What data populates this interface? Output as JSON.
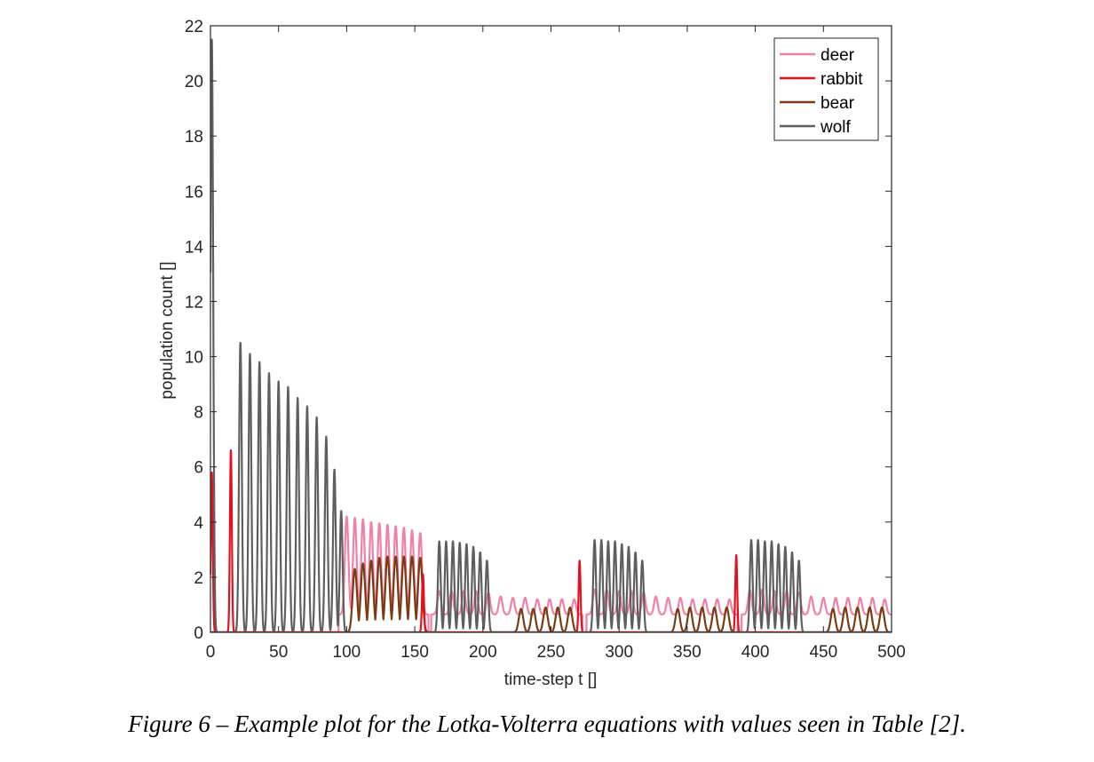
{
  "chart_data": {
    "type": "line",
    "xlabel": "time-step t []",
    "ylabel": "population count []",
    "xlim": [
      0,
      500
    ],
    "ylim": [
      0,
      22
    ],
    "xticks": [
      0,
      50,
      100,
      150,
      200,
      250,
      300,
      350,
      400,
      450,
      500
    ],
    "yticks": [
      0,
      2,
      4,
      6,
      8,
      10,
      12,
      14,
      16,
      18,
      20,
      22
    ],
    "grid": false,
    "legend_position": "top-right",
    "series": [
      {
        "name": "deer",
        "color": "#f27fa6",
        "peaks_x": [
          100,
          106,
          112,
          118,
          124,
          130,
          136,
          142,
          148,
          154,
          168,
          177,
          186,
          195,
          204,
          213,
          222,
          231,
          240,
          249,
          258,
          267,
          282,
          291,
          300,
          309,
          318,
          327,
          336,
          345,
          354,
          363,
          372,
          381,
          396,
          405,
          414,
          423,
          432,
          441,
          450,
          459,
          468,
          477,
          486,
          495
        ],
        "peaks_y": [
          4.2,
          4.15,
          4.1,
          4.0,
          3.95,
          3.9,
          3.85,
          3.8,
          3.7,
          3.6,
          1.5,
          1.5,
          1.5,
          1.5,
          1.45,
          1.3,
          1.25,
          1.25,
          1.2,
          1.2,
          1.2,
          1.2,
          1.55,
          1.55,
          1.5,
          1.5,
          1.45,
          1.3,
          1.25,
          1.25,
          1.2,
          1.2,
          1.2,
          1.2,
          1.55,
          1.55,
          1.5,
          1.5,
          1.45,
          1.3,
          1.25,
          1.25,
          1.25,
          1.25,
          1.25,
          1.2
        ],
        "trough_y": 0.65
      },
      {
        "name": "rabbit",
        "color": "#e3101e",
        "peaks_x": [
          1,
          15,
          156,
          271,
          386
        ],
        "peaks_y": [
          5.8,
          6.6,
          2.1,
          2.6,
          2.8
        ]
      },
      {
        "name": "bear",
        "color": "#7a3c14",
        "peaks_x": [
          106,
          112,
          118,
          124,
          130,
          136,
          142,
          148,
          154,
          228,
          237,
          246,
          255,
          264,
          343,
          352,
          361,
          370,
          379,
          457,
          466,
          475,
          484,
          493
        ],
        "peaks_y": [
          2.3,
          2.5,
          2.6,
          2.7,
          2.75,
          2.75,
          2.75,
          2.75,
          2.7,
          0.85,
          0.85,
          0.9,
          0.9,
          0.9,
          0.85,
          0.9,
          0.9,
          0.9,
          0.9,
          0.85,
          0.9,
          0.9,
          0.9,
          0.9
        ]
      },
      {
        "name": "wolf",
        "color": "#5f5f5f",
        "peaks_x": [
          1,
          22,
          29,
          36,
          43,
          50,
          57,
          64,
          71,
          78,
          85,
          91,
          96,
          168,
          173,
          178,
          183,
          188,
          193,
          198,
          203,
          282,
          287,
          292,
          297,
          302,
          307,
          312,
          317,
          397,
          402,
          407,
          412,
          417,
          422,
          427,
          432
        ],
        "peaks_y": [
          21.5,
          10.5,
          10.1,
          9.8,
          9.4,
          9.1,
          8.9,
          8.5,
          8.2,
          7.8,
          7.1,
          5.9,
          4.4,
          3.3,
          3.3,
          3.3,
          3.25,
          3.2,
          3.1,
          2.9,
          2.6,
          3.35,
          3.35,
          3.3,
          3.3,
          3.2,
          3.1,
          2.9,
          2.6,
          3.35,
          3.35,
          3.3,
          3.3,
          3.2,
          3.1,
          2.9,
          2.6
        ]
      }
    ]
  },
  "caption": "Figure 6 – Example plot for the Lotka-Volterra equations with values seen in Table [2]."
}
